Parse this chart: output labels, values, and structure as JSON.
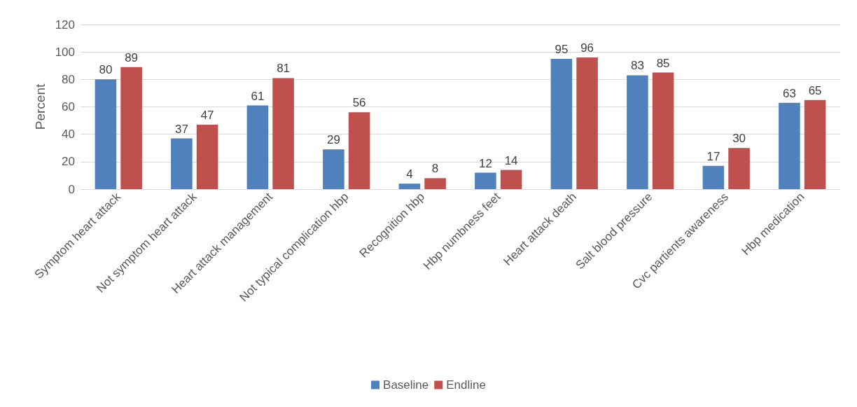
{
  "chart_data": {
    "type": "bar",
    "ylabel": "Percent",
    "categories": [
      "Symptom heart attack",
      "Not symptom heart attack",
      "Heart attack management",
      "Not typical complication hbp",
      "Recognition hbp",
      "Hbp numbness feet",
      "Heart attack death",
      "Salt blood pressure",
      "Cvc partients awareness",
      "Hbp medication"
    ],
    "series": [
      {
        "name": "Baseline",
        "color": "#4f81bd",
        "values": [
          80,
          37,
          61,
          29,
          4,
          12,
          95,
          83,
          17,
          63
        ]
      },
      {
        "name": "Endline",
        "color": "#c0504d",
        "values": [
          89,
          47,
          81,
          56,
          8,
          14,
          96,
          85,
          30,
          65
        ]
      }
    ],
    "ylim": [
      0,
      120
    ],
    "yticks": [
      0,
      20,
      40,
      60,
      80,
      100,
      120
    ],
    "grid": "y",
    "legend": "bottom",
    "data_labels": true
  }
}
